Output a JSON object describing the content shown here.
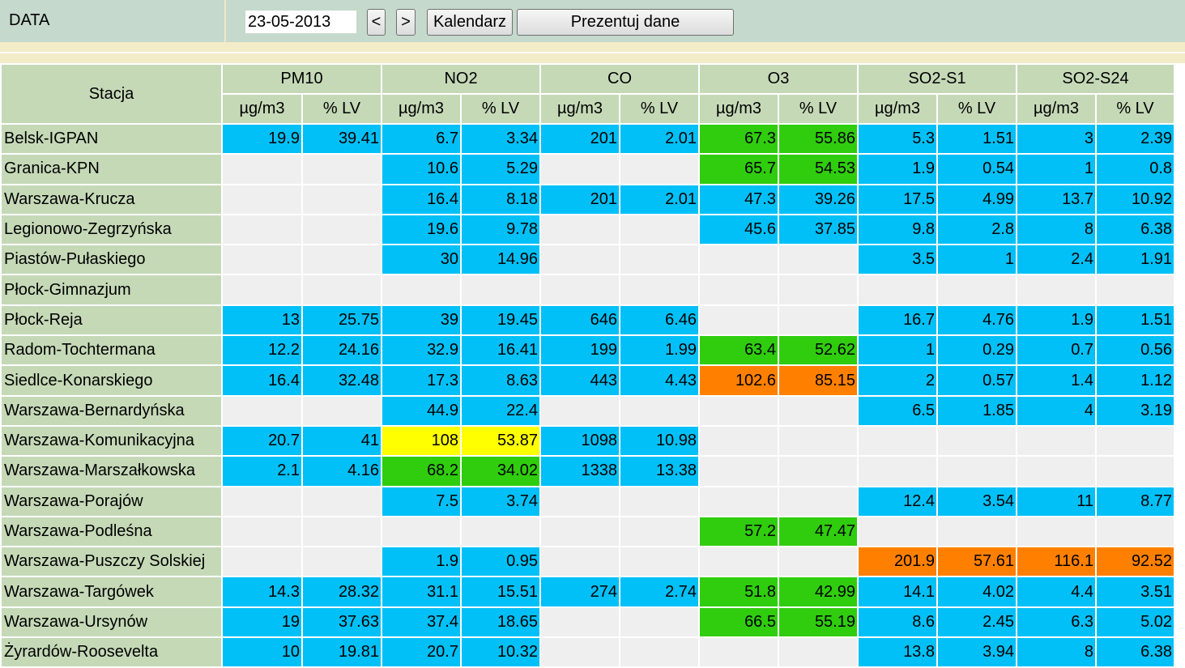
{
  "topbar": {
    "label": "DATA",
    "date_value": "23-05-2013",
    "prev_label": "<",
    "next_label": ">",
    "calendar_label": "Kalendarz",
    "show_label": "Prezentuj dane"
  },
  "colors": {
    "blue": "#00c0f7",
    "green": "#2fcd0e",
    "yellow": "#ffff00",
    "orange": "#ff8000",
    "empty": "#efefef",
    "header": "#c5d9b7"
  },
  "table": {
    "station_header": "Stacja",
    "pollutants": [
      "PM10",
      "NO2",
      "CO",
      "O3",
      "SO2-S1",
      "SO2-S24"
    ],
    "unit_labels": [
      "µg/m3",
      "% LV"
    ],
    "rows": [
      {
        "station": "Belsk-IGPAN",
        "cells": [
          [
            "19.9",
            "b"
          ],
          [
            "39.41",
            "b"
          ],
          [
            "6.7",
            "b"
          ],
          [
            "3.34",
            "b"
          ],
          [
            "201",
            "b"
          ],
          [
            "2.01",
            "b"
          ],
          [
            "67.3",
            "g"
          ],
          [
            "55.86",
            "g"
          ],
          [
            "5.3",
            "b"
          ],
          [
            "1.51",
            "b"
          ],
          [
            "3",
            "b"
          ],
          [
            "2.39",
            "b"
          ]
        ]
      },
      {
        "station": "Granica-KPN",
        "cells": [
          [
            "",
            ""
          ],
          [
            "",
            ""
          ],
          [
            "10.6",
            "b"
          ],
          [
            "5.29",
            "b"
          ],
          [
            "",
            ""
          ],
          [
            "",
            ""
          ],
          [
            "65.7",
            "g"
          ],
          [
            "54.53",
            "g"
          ],
          [
            "1.9",
            "b"
          ],
          [
            "0.54",
            "b"
          ],
          [
            "1",
            "b"
          ],
          [
            "0.8",
            "b"
          ]
        ]
      },
      {
        "station": "Warszawa-Krucza",
        "cells": [
          [
            "",
            ""
          ],
          [
            "",
            ""
          ],
          [
            "16.4",
            "b"
          ],
          [
            "8.18",
            "b"
          ],
          [
            "201",
            "b"
          ],
          [
            "2.01",
            "b"
          ],
          [
            "47.3",
            "b"
          ],
          [
            "39.26",
            "b"
          ],
          [
            "17.5",
            "b"
          ],
          [
            "4.99",
            "b"
          ],
          [
            "13.7",
            "b"
          ],
          [
            "10.92",
            "b"
          ]
        ]
      },
      {
        "station": "Legionowo-Zegrzyńska",
        "cells": [
          [
            "",
            ""
          ],
          [
            "",
            ""
          ],
          [
            "19.6",
            "b"
          ],
          [
            "9.78",
            "b"
          ],
          [
            "",
            ""
          ],
          [
            "",
            ""
          ],
          [
            "45.6",
            "b"
          ],
          [
            "37.85",
            "b"
          ],
          [
            "9.8",
            "b"
          ],
          [
            "2.8",
            "b"
          ],
          [
            "8",
            "b"
          ],
          [
            "6.38",
            "b"
          ]
        ]
      },
      {
        "station": "Piastów-Pułaskiego",
        "cells": [
          [
            "",
            ""
          ],
          [
            "",
            ""
          ],
          [
            "30",
            "b"
          ],
          [
            "14.96",
            "b"
          ],
          [
            "",
            ""
          ],
          [
            "",
            ""
          ],
          [
            "",
            ""
          ],
          [
            "",
            ""
          ],
          [
            "3.5",
            "b"
          ],
          [
            "1",
            "b"
          ],
          [
            "2.4",
            "b"
          ],
          [
            "1.91",
            "b"
          ]
        ]
      },
      {
        "station": "Płock-Gimnazjum",
        "cells": [
          [
            "",
            ""
          ],
          [
            "",
            ""
          ],
          [
            "",
            ""
          ],
          [
            "",
            ""
          ],
          [
            "",
            ""
          ],
          [
            "",
            ""
          ],
          [
            "",
            ""
          ],
          [
            "",
            ""
          ],
          [
            "",
            ""
          ],
          [
            "",
            ""
          ],
          [
            "",
            ""
          ],
          [
            "",
            ""
          ]
        ]
      },
      {
        "station": "Płock-Reja",
        "cells": [
          [
            "13",
            "b"
          ],
          [
            "25.75",
            "b"
          ],
          [
            "39",
            "b"
          ],
          [
            "19.45",
            "b"
          ],
          [
            "646",
            "b"
          ],
          [
            "6.46",
            "b"
          ],
          [
            "",
            ""
          ],
          [
            "",
            ""
          ],
          [
            "16.7",
            "b"
          ],
          [
            "4.76",
            "b"
          ],
          [
            "1.9",
            "b"
          ],
          [
            "1.51",
            "b"
          ]
        ]
      },
      {
        "station": "Radom-Tochtermana",
        "cells": [
          [
            "12.2",
            "b"
          ],
          [
            "24.16",
            "b"
          ],
          [
            "32.9",
            "b"
          ],
          [
            "16.41",
            "b"
          ],
          [
            "199",
            "b"
          ],
          [
            "1.99",
            "b"
          ],
          [
            "63.4",
            "g"
          ],
          [
            "52.62",
            "g"
          ],
          [
            "1",
            "b"
          ],
          [
            "0.29",
            "b"
          ],
          [
            "0.7",
            "b"
          ],
          [
            "0.56",
            "b"
          ]
        ]
      },
      {
        "station": "Siedlce-Konarskiego",
        "cells": [
          [
            "16.4",
            "b"
          ],
          [
            "32.48",
            "b"
          ],
          [
            "17.3",
            "b"
          ],
          [
            "8.63",
            "b"
          ],
          [
            "443",
            "b"
          ],
          [
            "4.43",
            "b"
          ],
          [
            "102.6",
            "o"
          ],
          [
            "85.15",
            "o"
          ],
          [
            "2",
            "b"
          ],
          [
            "0.57",
            "b"
          ],
          [
            "1.4",
            "b"
          ],
          [
            "1.12",
            "b"
          ]
        ]
      },
      {
        "station": "Warszawa-Bernardyńska",
        "cells": [
          [
            "",
            ""
          ],
          [
            "",
            ""
          ],
          [
            "44.9",
            "b"
          ],
          [
            "22.4",
            "b"
          ],
          [
            "",
            ""
          ],
          [
            "",
            ""
          ],
          [
            "",
            ""
          ],
          [
            "",
            ""
          ],
          [
            "6.5",
            "b"
          ],
          [
            "1.85",
            "b"
          ],
          [
            "4",
            "b"
          ],
          [
            "3.19",
            "b"
          ]
        ]
      },
      {
        "station": "Warszawa-Komunikacyjna",
        "cells": [
          [
            "20.7",
            "b"
          ],
          [
            "41",
            "b"
          ],
          [
            "108",
            "y"
          ],
          [
            "53.87",
            "y"
          ],
          [
            "1098",
            "b"
          ],
          [
            "10.98",
            "b"
          ],
          [
            "",
            ""
          ],
          [
            "",
            ""
          ],
          [
            "",
            ""
          ],
          [
            "",
            ""
          ],
          [
            "",
            ""
          ],
          [
            "",
            ""
          ]
        ]
      },
      {
        "station": "Warszawa-Marszałkowska",
        "cells": [
          [
            "2.1",
            "b"
          ],
          [
            "4.16",
            "b"
          ],
          [
            "68.2",
            "g"
          ],
          [
            "34.02",
            "g"
          ],
          [
            "1338",
            "b"
          ],
          [
            "13.38",
            "b"
          ],
          [
            "",
            ""
          ],
          [
            "",
            ""
          ],
          [
            "",
            ""
          ],
          [
            "",
            ""
          ],
          [
            "",
            ""
          ],
          [
            "",
            ""
          ]
        ]
      },
      {
        "station": "Warszawa-Porajów",
        "cells": [
          [
            "",
            ""
          ],
          [
            "",
            ""
          ],
          [
            "7.5",
            "b"
          ],
          [
            "3.74",
            "b"
          ],
          [
            "",
            ""
          ],
          [
            "",
            ""
          ],
          [
            "",
            ""
          ],
          [
            "",
            ""
          ],
          [
            "12.4",
            "b"
          ],
          [
            "3.54",
            "b"
          ],
          [
            "11",
            "b"
          ],
          [
            "8.77",
            "b"
          ]
        ]
      },
      {
        "station": "Warszawa-Podleśna",
        "cells": [
          [
            "",
            ""
          ],
          [
            "",
            ""
          ],
          [
            "",
            ""
          ],
          [
            "",
            ""
          ],
          [
            "",
            ""
          ],
          [
            "",
            ""
          ],
          [
            "57.2",
            "g"
          ],
          [
            "47.47",
            "g"
          ],
          [
            "",
            ""
          ],
          [
            "",
            ""
          ],
          [
            "",
            ""
          ],
          [
            "",
            ""
          ]
        ]
      },
      {
        "station": "Warszawa-Puszczy Solskiej",
        "cells": [
          [
            "",
            ""
          ],
          [
            "",
            ""
          ],
          [
            "1.9",
            "b"
          ],
          [
            "0.95",
            "b"
          ],
          [
            "",
            ""
          ],
          [
            "",
            ""
          ],
          [
            "",
            ""
          ],
          [
            "",
            ""
          ],
          [
            "201.9",
            "o"
          ],
          [
            "57.61",
            "o"
          ],
          [
            "116.1",
            "o"
          ],
          [
            "92.52",
            "o"
          ]
        ]
      },
      {
        "station": "Warszawa-Targówek",
        "cells": [
          [
            "14.3",
            "b"
          ],
          [
            "28.32",
            "b"
          ],
          [
            "31.1",
            "b"
          ],
          [
            "15.51",
            "b"
          ],
          [
            "274",
            "b"
          ],
          [
            "2.74",
            "b"
          ],
          [
            "51.8",
            "g"
          ],
          [
            "42.99",
            "g"
          ],
          [
            "14.1",
            "b"
          ],
          [
            "4.02",
            "b"
          ],
          [
            "4.4",
            "b"
          ],
          [
            "3.51",
            "b"
          ]
        ]
      },
      {
        "station": "Warszawa-Ursynów",
        "cells": [
          [
            "19",
            "b"
          ],
          [
            "37.63",
            "b"
          ],
          [
            "37.4",
            "b"
          ],
          [
            "18.65",
            "b"
          ],
          [
            "",
            ""
          ],
          [
            "",
            ""
          ],
          [
            "66.5",
            "g"
          ],
          [
            "55.19",
            "g"
          ],
          [
            "8.6",
            "b"
          ],
          [
            "2.45",
            "b"
          ],
          [
            "6.3",
            "b"
          ],
          [
            "5.02",
            "b"
          ]
        ]
      },
      {
        "station": "Żyrardów-Roosevelta",
        "cells": [
          [
            "10",
            "b"
          ],
          [
            "19.81",
            "b"
          ],
          [
            "20.7",
            "b"
          ],
          [
            "10.32",
            "b"
          ],
          [
            "",
            ""
          ],
          [
            "",
            ""
          ],
          [
            "",
            ""
          ],
          [
            "",
            ""
          ],
          [
            "13.8",
            "b"
          ],
          [
            "3.94",
            "b"
          ],
          [
            "8",
            "b"
          ],
          [
            "6.38",
            "b"
          ]
        ]
      }
    ]
  }
}
